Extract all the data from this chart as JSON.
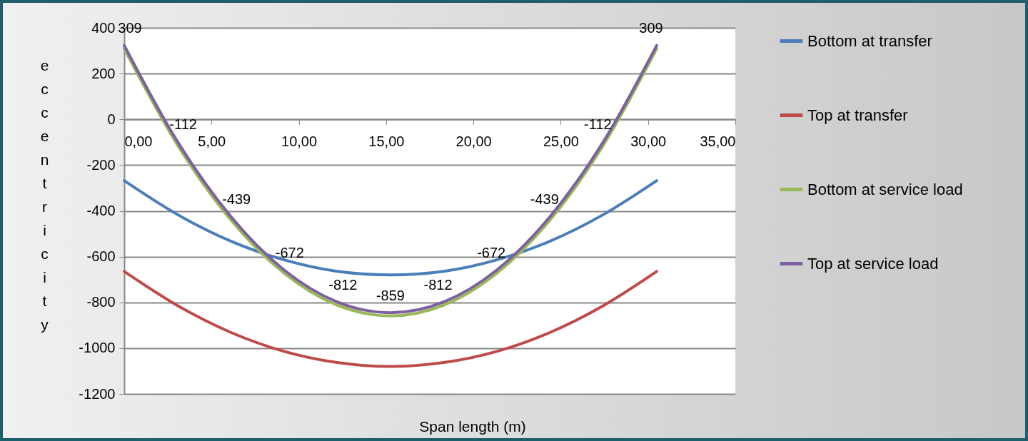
{
  "chart_data": {
    "type": "line",
    "xlabel": "Span length (m)",
    "ylabel": "eccentricity",
    "x": [
      0,
      3.05,
      6.1,
      9.15,
      12.2,
      15.25,
      18.3,
      21.35,
      24.4,
      27.45,
      30.5
    ],
    "xlim": [
      0,
      35
    ],
    "xticks": [
      {
        "value": 0,
        "label": "0,00"
      },
      {
        "value": 5,
        "label": "5,00"
      },
      {
        "value": 10,
        "label": "10,00"
      },
      {
        "value": 15,
        "label": "15,00"
      },
      {
        "value": 20,
        "label": "20,00"
      },
      {
        "value": 25,
        "label": "25,00"
      },
      {
        "value": 30,
        "label": "30,00"
      },
      {
        "value": 35,
        "label": "35,00"
      }
    ],
    "ylim": [
      -1200,
      400
    ],
    "yticks": [
      -1200,
      -1000,
      -800,
      -600,
      -400,
      -200,
      0,
      200,
      400
    ],
    "grid": "y",
    "legend": "right",
    "series": [
      {
        "name": "Bottom at transfer",
        "color": "#4a7ebb",
        "values": [
          -268,
          -416,
          -532,
          -614,
          -664,
          -680,
          -664,
          -614,
          -532,
          -416,
          -268
        ]
      },
      {
        "name": "Top at transfer",
        "color": "#be4b48",
        "values": [
          -665,
          -814,
          -931,
          -1014,
          -1063,
          -1080,
          -1063,
          -1014,
          -931,
          -814,
          -665
        ]
      },
      {
        "name": "Bottom at service load",
        "color": "#98b954",
        "values": [
          309,
          -112,
          -439,
          -672,
          -812,
          -859,
          -812,
          -672,
          -439,
          -112,
          309
        ],
        "value_labels": [
          "309",
          "-112",
          "-439",
          "-672",
          "-812",
          "-859",
          "-812",
          "-672",
          "-439",
          "-112",
          "309"
        ]
      },
      {
        "name": "Top at service load",
        "color": "#7d60a0",
        "values": [
          323,
          -97,
          -424,
          -658,
          -798,
          -845,
          -798,
          -658,
          -424,
          -97,
          323
        ]
      }
    ]
  }
}
